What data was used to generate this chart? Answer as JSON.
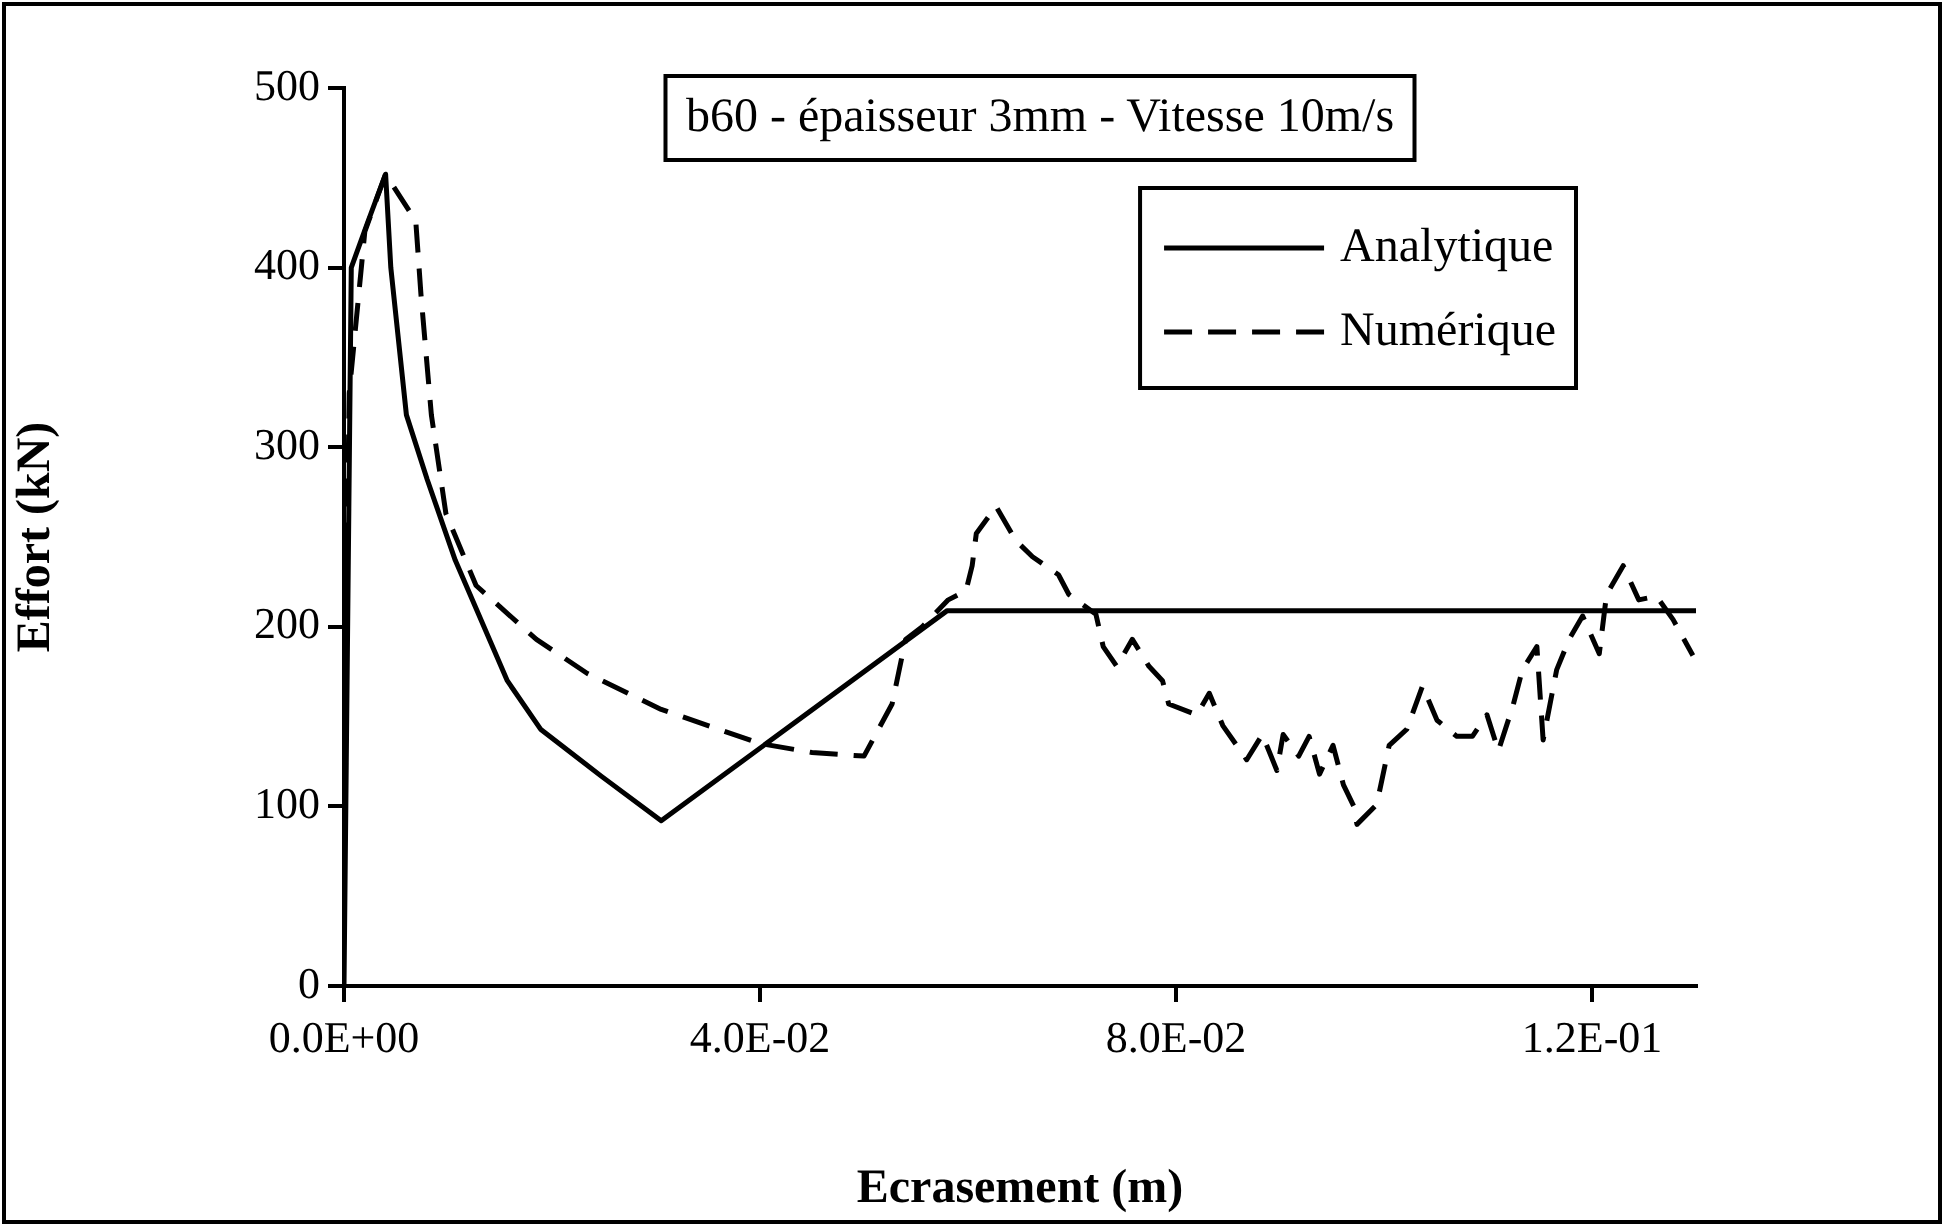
{
  "chart_data": {
    "type": "line",
    "title": "b60 - épaisseur 3mm - Vitesse 10m/s",
    "xlabel": "Ecrasement (m)",
    "ylabel": "Effort (kN)",
    "xlim": [
      0,
      0.13
    ],
    "xticks": [
      {
        "value": 0,
        "label": "0.0E+00"
      },
      {
        "value": 0.04,
        "label": "4.0E-02"
      },
      {
        "value": 0.08,
        "label": "8.0E-02"
      },
      {
        "value": 0.12,
        "label": "1.2E-01"
      }
    ],
    "ylim": [
      0,
      500
    ],
    "yticks": [
      0,
      100,
      200,
      300,
      400,
      500
    ],
    "grid": false,
    "legend": "top right",
    "marker": "none",
    "series": [
      {
        "name": "Analytique",
        "color": "#000000",
        "line_style": "solid",
        "x": [
          0,
          0.0007,
          0.0022,
          0.004,
          0.0045,
          0.006,
          0.008,
          0.0107,
          0.0157,
          0.0189,
          0.0247,
          0.0305,
          0.058,
          0.13
        ],
        "values": [
          0,
          400,
          424,
          452,
          400,
          318,
          282,
          237,
          170,
          143,
          117,
          92,
          209,
          209
        ]
      },
      {
        "name": "Numérique",
        "color": "#000000",
        "line_style": "dashed",
        "x": [
          0,
          0.0005,
          0.002,
          0.004,
          0.0069,
          0.0074,
          0.0084,
          0.0098,
          0.0127,
          0.0185,
          0.0234,
          0.0305,
          0.04,
          0.045,
          0.05,
          0.0527,
          0.054,
          0.0556,
          0.0581,
          0.0598,
          0.0604,
          0.0608,
          0.0627,
          0.0646,
          0.0662,
          0.0687,
          0.0697,
          0.0723,
          0.073,
          0.0743,
          0.0758,
          0.0774,
          0.0787,
          0.0793,
          0.082,
          0.0832,
          0.0845,
          0.0868,
          0.0883,
          0.0897,
          0.0903,
          0.0918,
          0.0928,
          0.0938,
          0.0951,
          0.0961,
          0.0971,
          0.0974,
          0.0993,
          0.1005,
          0.1022,
          0.1037,
          0.1051,
          0.107,
          0.1085,
          0.1099,
          0.111,
          0.1124,
          0.1133,
          0.1147,
          0.1153,
          0.1166,
          0.1178,
          0.1191,
          0.1207,
          0.1214,
          0.123,
          0.1245,
          0.1262,
          0.1278,
          0.1297
        ],
        "values": [
          120,
          330,
          420,
          452,
          426,
          385,
          318,
          263,
          223,
          193,
          174,
          154,
          135,
          130,
          128,
          157,
          193,
          200,
          215,
          220,
          234,
          252,
          267,
          248,
          239,
          229,
          218,
          207,
          189,
          178,
          193,
          178,
          170,
          157,
          151,
          163,
          145,
          126,
          140,
          120,
          140,
          128,
          139,
          118,
          134,
          112,
          100,
          90,
          101,
          134,
          143,
          167,
          148,
          139,
          139,
          151,
          131,
          156,
          176,
          189,
          137,
          176,
          193,
          206,
          185,
          218,
          234,
          215,
          217,
          204,
          184
        ]
      }
    ]
  }
}
